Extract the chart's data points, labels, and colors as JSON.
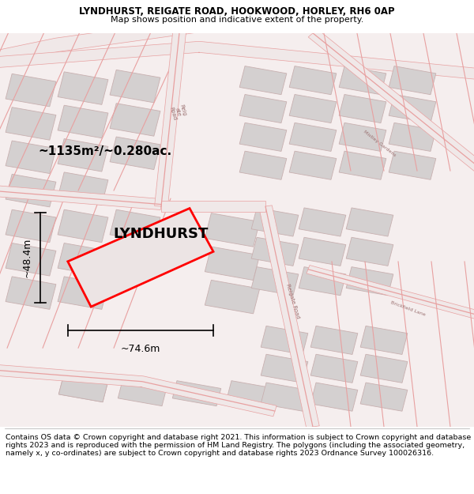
{
  "title_line1": "LYNDHURST, REIGATE ROAD, HOOKWOOD, HORLEY, RH6 0AP",
  "title_line2": "Map shows position and indicative extent of the property.",
  "footer_text": "Contains OS data © Crown copyright and database right 2021. This information is subject to Crown copyright and database rights 2023 and is reproduced with the permission of HM Land Registry. The polygons (including the associated geometry, namely x, y co-ordinates) are subject to Crown copyright and database rights 2023 Ordnance Survey 100026316.",
  "area_label": "~1135m²/~0.280ac.",
  "property_name": "LYNDHURST",
  "dim_height": "~48.4m",
  "dim_width": "~74.6m",
  "map_bg": "#f5eeee",
  "building_fill": "#d4d0d0",
  "building_edge": "#c8b0b0",
  "road_line_color": "#e8a0a0",
  "road_fill": "#f0e8e8",
  "highlight_fill": "#ece4e4",
  "highlight_edge": "#ff0000",
  "title_fontsize": 8.5,
  "footer_fontsize": 6.8,
  "label_fontsize": 11,
  "property_fontsize": 13,
  "dim_fontsize": 9
}
